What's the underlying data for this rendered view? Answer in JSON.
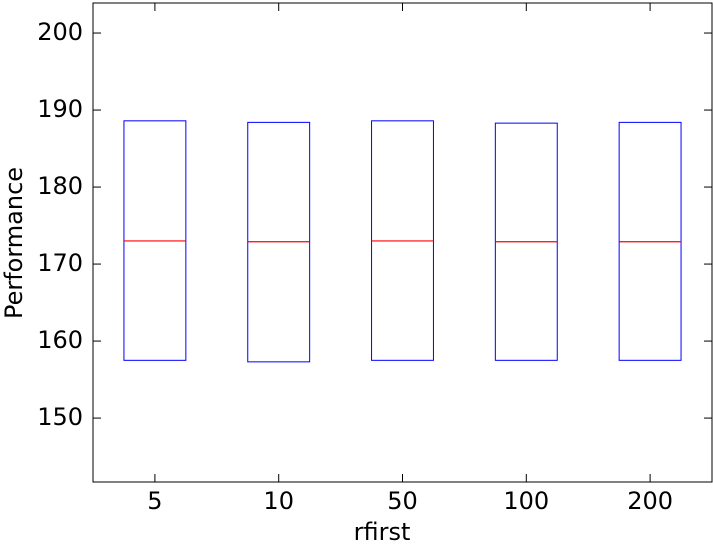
{
  "chart_data": {
    "type": "box",
    "x_label": "rfirst",
    "y_label": "Performance",
    "categories": [
      "5",
      "10",
      "50",
      "100",
      "200"
    ],
    "q1": [
      157.5,
      157.3,
      157.5,
      157.5,
      157.5
    ],
    "median": [
      173.0,
      172.9,
      173.0,
      172.9,
      172.9
    ],
    "q3": [
      188.6,
      188.4,
      188.6,
      188.3,
      188.4
    ],
    "box_color": "#0000ff",
    "median_color": "#ff0000",
    "ylim": [
      141.7,
      203.9
    ],
    "yticks": [
      150,
      160,
      170,
      180,
      190,
      200
    ]
  }
}
